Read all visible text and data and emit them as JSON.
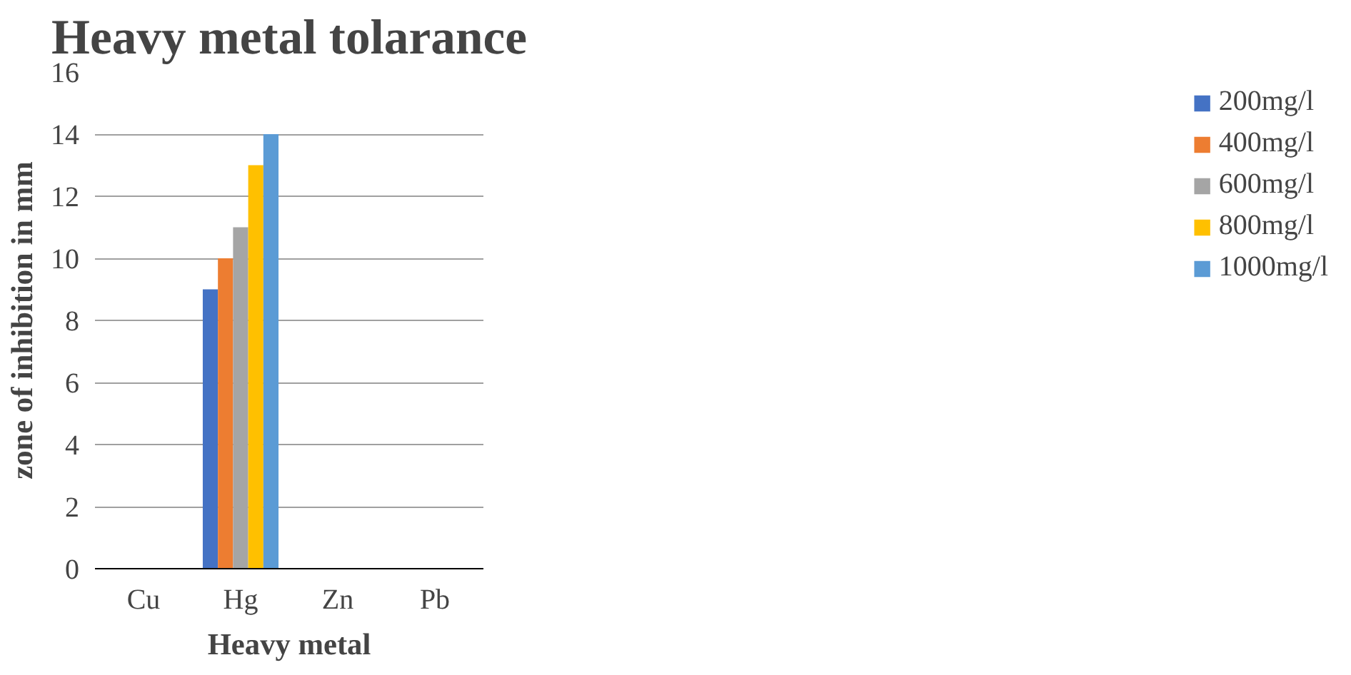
{
  "chart_data": {
    "type": "bar",
    "title": "Heavy metal tolarance",
    "xlabel": "Heavy metal",
    "ylabel": "zone of inhibition in mm",
    "categories": [
      "Cu",
      "Hg",
      "Zn",
      "Pb"
    ],
    "series": [
      {
        "name": "200mg/l",
        "color": "#4472c4",
        "values": [
          0,
          9,
          0,
          0
        ]
      },
      {
        "name": "400mg/l",
        "color": "#ed7d31",
        "values": [
          0,
          10,
          0,
          0
        ]
      },
      {
        "name": "600mg/l",
        "color": "#a5a5a5",
        "values": [
          0,
          11,
          0,
          0
        ]
      },
      {
        "name": "800mg/l",
        "color": "#ffc000",
        "values": [
          0,
          13,
          0,
          0
        ]
      },
      {
        "name": "1000mg/l",
        "color": "#5b9bd5",
        "values": [
          0,
          14,
          0,
          0
        ]
      }
    ],
    "ylim": [
      0,
      16
    ],
    "yticks": [
      0,
      2,
      4,
      6,
      8,
      10,
      12,
      14,
      16
    ],
    "grid": "y",
    "legend": "right"
  }
}
